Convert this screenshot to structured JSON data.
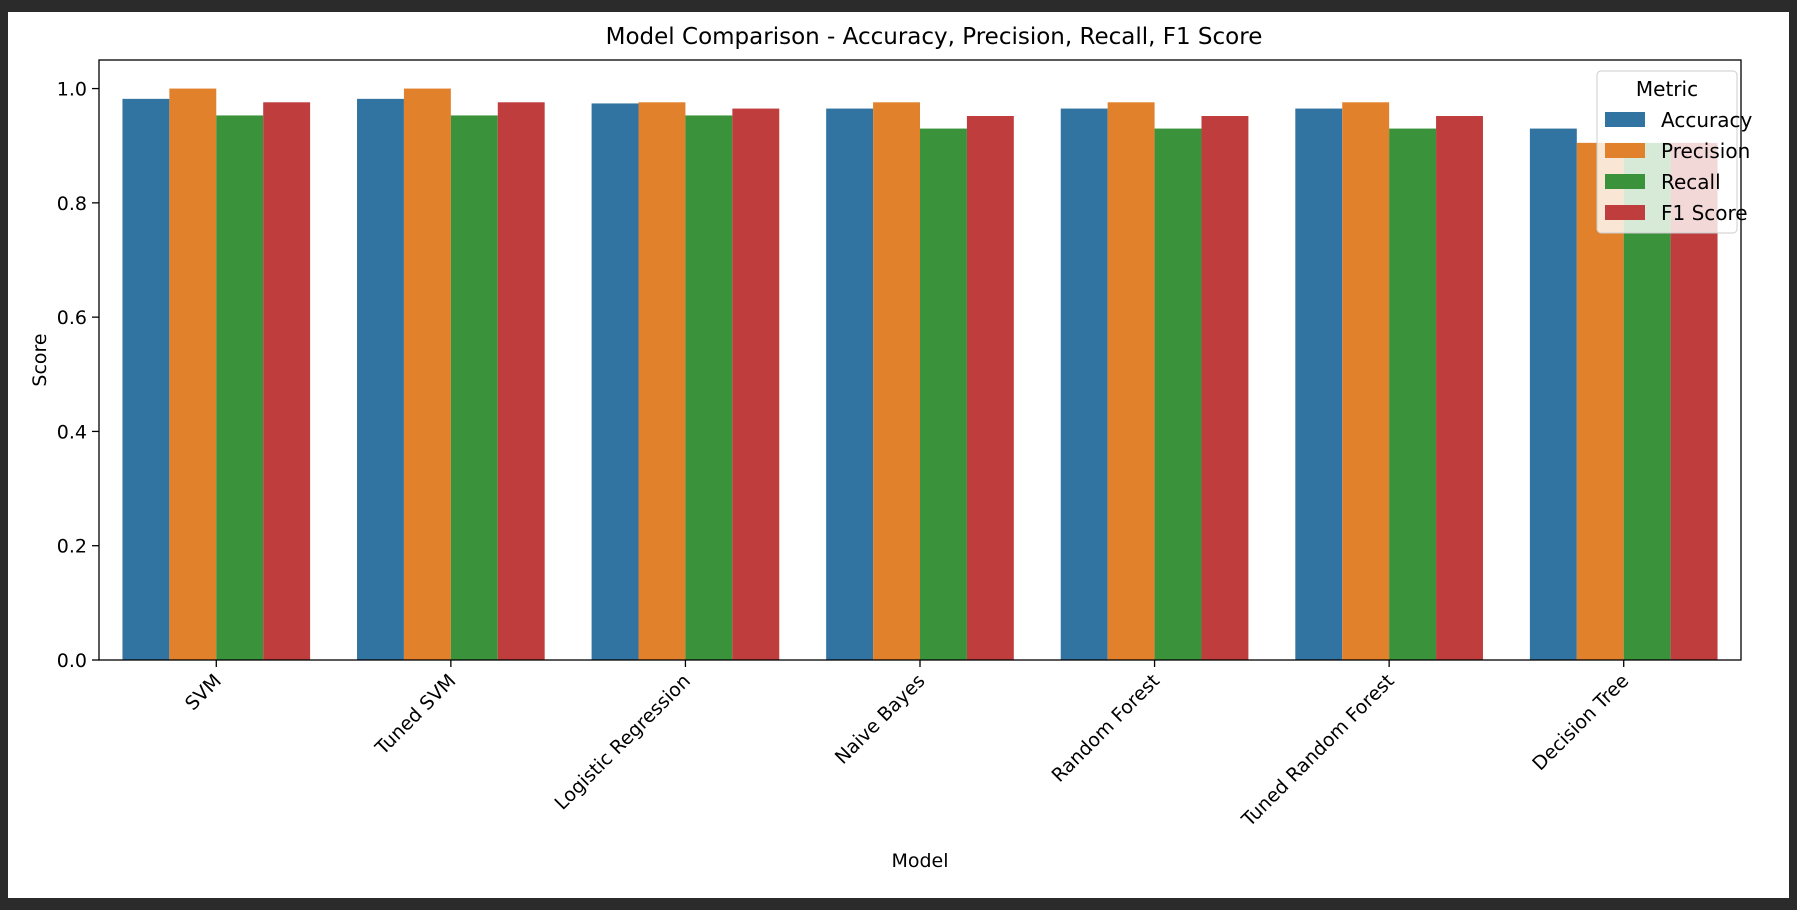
{
  "chart_data": {
    "type": "bar",
    "title": "Model Comparison - Accuracy, Precision, Recall, F1 Score",
    "xlabel": "Model",
    "ylabel": "Score",
    "ylim": [
      0,
      1.05
    ],
    "yticks": [
      "0.0",
      "0.2",
      "0.4",
      "0.6",
      "0.8",
      "1.0"
    ],
    "grid": false,
    "legend": {
      "title": "Metric",
      "placement": "top-right"
    },
    "categories": [
      "SVM",
      "Tuned SVM",
      "Logistic Regression",
      "Naive Bayes",
      "Random Forest",
      "Tuned Random Forest",
      "Decision Tree"
    ],
    "series": [
      {
        "name": "Accuracy",
        "color": "#3274a1",
        "values": [
          0.982,
          0.982,
          0.974,
          0.965,
          0.965,
          0.965,
          0.93
        ]
      },
      {
        "name": "Precision",
        "color": "#e1812c",
        "values": [
          1.0,
          1.0,
          0.976,
          0.976,
          0.976,
          0.976,
          0.905
        ]
      },
      {
        "name": "Recall",
        "color": "#3a923a",
        "values": [
          0.953,
          0.953,
          0.953,
          0.93,
          0.93,
          0.93,
          0.905
        ]
      },
      {
        "name": "F1 Score",
        "color": "#c03d3e",
        "values": [
          0.976,
          0.976,
          0.965,
          0.952,
          0.952,
          0.952,
          0.905
        ]
      }
    ]
  }
}
